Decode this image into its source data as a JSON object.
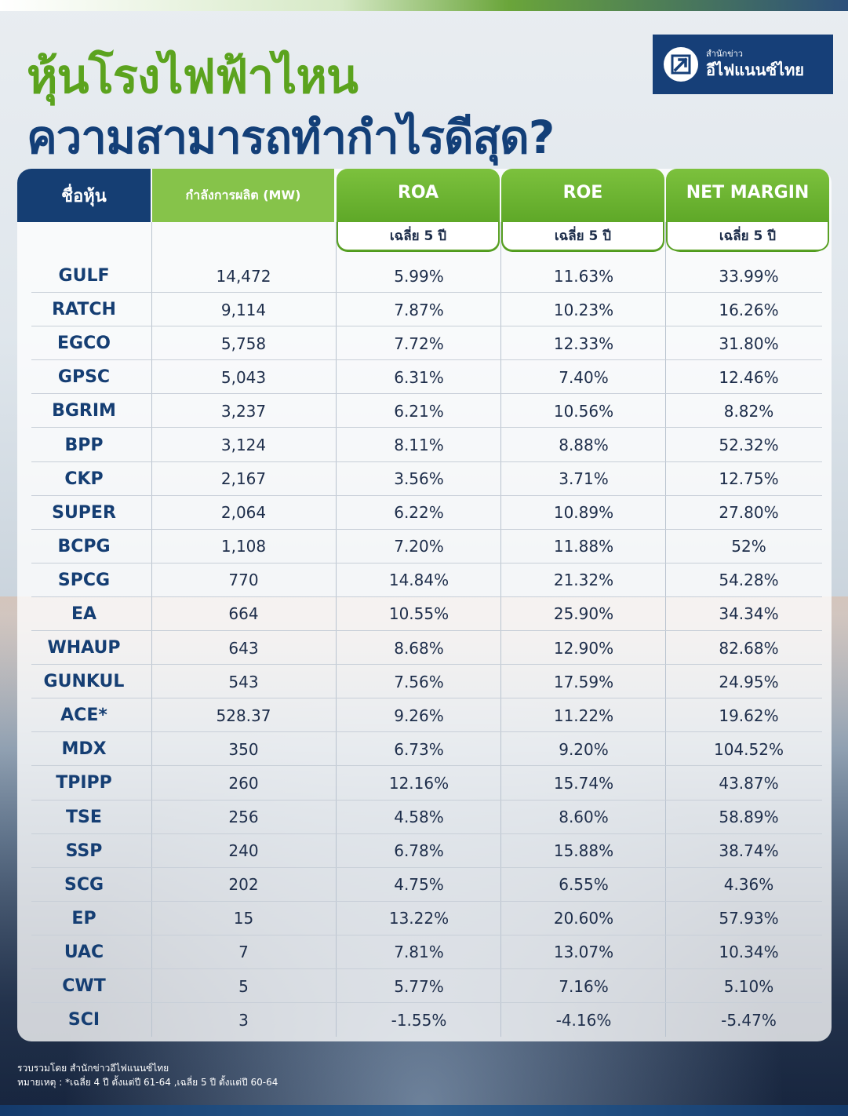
{
  "title": {
    "line1": "หุ้นโรงไฟฟ้าไหน",
    "line2": "ความสามารถทำกำไรดีสุด?"
  },
  "logo": {
    "small": "สำนักข่าว",
    "big": "อีไฟแนนซ์ไทย"
  },
  "table": {
    "headers": {
      "name": "ชื่อหุ้น",
      "capacity": "กำลังการผลิต (MW)",
      "roa": "ROA",
      "roe": "ROE",
      "net_margin": "NET MARGIN"
    },
    "subheaders": {
      "roa": "เฉลี่ย 5 ปี",
      "roe": "เฉลี่ย 5 ปี",
      "net_margin": "เฉลี่ย 5 ปี"
    },
    "rows": [
      {
        "name": "GULF",
        "capacity": "14,472",
        "roa": "5.99%",
        "roe": "11.63%",
        "nm": "33.99%"
      },
      {
        "name": "RATCH",
        "capacity": "9,114",
        "roa": "7.87%",
        "roe": "10.23%",
        "nm": "16.26%"
      },
      {
        "name": "EGCO",
        "capacity": "5,758",
        "roa": "7.72%",
        "roe": "12.33%",
        "nm": "31.80%"
      },
      {
        "name": "GPSC",
        "capacity": "5,043",
        "roa": "6.31%",
        "roe": "7.40%",
        "nm": "12.46%"
      },
      {
        "name": "BGRIM",
        "capacity": "3,237",
        "roa": "6.21%",
        "roe": "10.56%",
        "nm": "8.82%"
      },
      {
        "name": "BPP",
        "capacity": "3,124",
        "roa": "8.11%",
        "roe": "8.88%",
        "nm": "52.32%"
      },
      {
        "name": "CKP",
        "capacity": "2,167",
        "roa": "3.56%",
        "roe": "3.71%",
        "nm": "12.75%"
      },
      {
        "name": "SUPER",
        "capacity": "2,064",
        "roa": "6.22%",
        "roe": "10.89%",
        "nm": "27.80%"
      },
      {
        "name": "BCPG",
        "capacity": "1,108",
        "roa": "7.20%",
        "roe": "11.88%",
        "nm": "52%"
      },
      {
        "name": "SPCG",
        "capacity": "770",
        "roa": "14.84%",
        "roe": "21.32%",
        "nm": "54.28%"
      },
      {
        "name": "EA",
        "capacity": "664",
        "roa": "10.55%",
        "roe": "25.90%",
        "nm": "34.34%"
      },
      {
        "name": "WHAUP",
        "capacity": "643",
        "roa": "8.68%",
        "roe": "12.90%",
        "nm": "82.68%"
      },
      {
        "name": "GUNKUL",
        "capacity": "543",
        "roa": "7.56%",
        "roe": "17.59%",
        "nm": "24.95%"
      },
      {
        "name": "ACE*",
        "capacity": "528.37",
        "roa": "9.26%",
        "roe": "11.22%",
        "nm": "19.62%"
      },
      {
        "name": "MDX",
        "capacity": "350",
        "roa": "6.73%",
        "roe": "9.20%",
        "nm": "104.52%"
      },
      {
        "name": "TPIPP",
        "capacity": "260",
        "roa": "12.16%",
        "roe": "15.74%",
        "nm": "43.87%"
      },
      {
        "name": "TSE",
        "capacity": "256",
        "roa": "4.58%",
        "roe": "8.60%",
        "nm": "58.89%"
      },
      {
        "name": "SSP",
        "capacity": "240",
        "roa": "6.78%",
        "roe": "15.88%",
        "nm": "38.74%"
      },
      {
        "name": "SCG",
        "capacity": "202",
        "roa": "4.75%",
        "roe": "6.55%",
        "nm": "4.36%"
      },
      {
        "name": "EP",
        "capacity": "15",
        "roa": "13.22%",
        "roe": "20.60%",
        "nm": "57.93%"
      },
      {
        "name": "UAC",
        "capacity": "7",
        "roa": "7.81%",
        "roe": "13.07%",
        "nm": "10.34%"
      },
      {
        "name": "CWT",
        "capacity": "5",
        "roa": "5.77%",
        "roe": "7.16%",
        "nm": "5.10%"
      },
      {
        "name": "SCI",
        "capacity": "3",
        "roa": "-1.55%",
        "roe": "-4.16%",
        "nm": "-5.47%"
      }
    ]
  },
  "footer": {
    "source": "รวบรวมโดย สำนักข่าวอีไฟแนนซ์ไทย",
    "note": "หมายเหตุ : *เฉลี่ย 4 ปี ตั้งแต่ปี 61-64 ,เฉลี่ย 5 ปี ตั้งแต่ปี 60-64"
  },
  "colors": {
    "green": "#5ba31e",
    "navy": "#133f78"
  }
}
